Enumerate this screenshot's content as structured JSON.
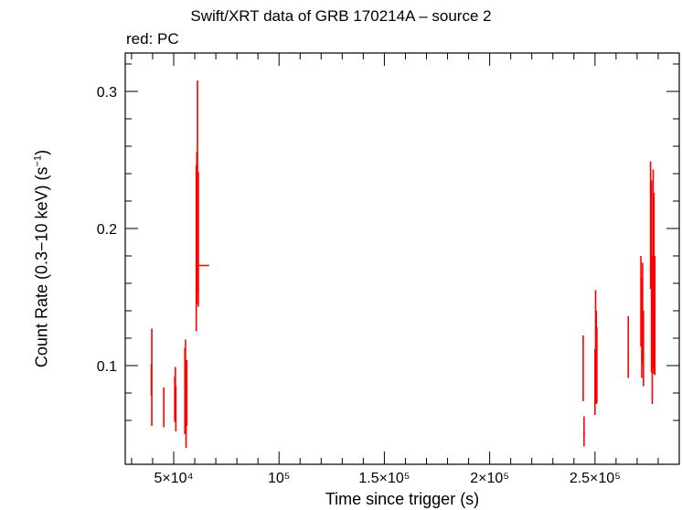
{
  "chart_data": {
    "type": "scatter",
    "title": "Swift/XRT data of GRB 170214A – source 2",
    "subtitle": "red: PC",
    "xlabel": "Time since trigger (s)",
    "ylabel": "Count Rate (0.3−10 keV) (s",
    "ylabel_sup": "−1",
    "ylabel_tail": ")",
    "xlim": [
      27000,
      290000
    ],
    "ylim": [
      0.028,
      0.328
    ],
    "x_ticks": [
      {
        "value": 50000,
        "label": "5×10⁴"
      },
      {
        "value": 100000,
        "label": "10⁵"
      },
      {
        "value": 150000,
        "label": "1.5×10⁵"
      },
      {
        "value": 200000,
        "label": "2×10⁵"
      },
      {
        "value": 250000,
        "label": "2.5×10⁵"
      }
    ],
    "y_ticks": [
      {
        "value": 0.1,
        "label": "0.1"
      },
      {
        "value": 0.2,
        "label": "0.2"
      },
      {
        "value": 0.3,
        "label": "0.3"
      }
    ],
    "series": [
      {
        "color": "#ff0000",
        "points": [
          {
            "x": 39400,
            "xerr": 150,
            "y": 0.095,
            "ylo": 0.078,
            "yhi": 0.101
          },
          {
            "x": 39600,
            "xerr": 150,
            "y": 0.087,
            "ylo": 0.056,
            "yhi": 0.127
          },
          {
            "x": 45300,
            "xerr": 150,
            "y": 0.07,
            "ylo": 0.055,
            "yhi": 0.084
          },
          {
            "x": 50500,
            "xerr": 150,
            "y": 0.075,
            "ylo": 0.059,
            "yhi": 0.092
          },
          {
            "x": 50800,
            "xerr": 150,
            "y": 0.084,
            "ylo": 0.068,
            "yhi": 0.099
          },
          {
            "x": 51000,
            "xerr": 150,
            "y": 0.068,
            "ylo": 0.052,
            "yhi": 0.085
          },
          {
            "x": 55300,
            "xerr": 150,
            "y": 0.078,
            "ylo": 0.05,
            "yhi": 0.113
          },
          {
            "x": 55600,
            "xerr": 150,
            "y": 0.084,
            "ylo": 0.061,
            "yhi": 0.119
          },
          {
            "x": 55900,
            "xerr": 150,
            "y": 0.069,
            "ylo": 0.04,
            "yhi": 0.097
          },
          {
            "x": 56200,
            "xerr": 150,
            "y": 0.075,
            "ylo": 0.056,
            "yhi": 0.104
          },
          {
            "x": 60700,
            "xerr": 150,
            "y": 0.185,
            "ylo": 0.125,
            "yhi": 0.246
          },
          {
            "x": 61000,
            "xerr": 150,
            "y": 0.203,
            "ylo": 0.145,
            "yhi": 0.256
          },
          {
            "x": 61300,
            "xerr": 150,
            "y": 0.23,
            "ylo": 0.153,
            "yhi": 0.308
          },
          {
            "x": 61700,
            "xerr": 150,
            "y": 0.184,
            "ylo": 0.143,
            "yhi": 0.241
          },
          {
            "x": 64300,
            "xerr": 2500,
            "y": 0.173,
            "ylo": 0.173,
            "yhi": 0.173
          },
          {
            "x": 244400,
            "xerr": 150,
            "y": 0.1,
            "ylo": 0.074,
            "yhi": 0.122
          },
          {
            "x": 244800,
            "xerr": 400,
            "y": 0.051,
            "ylo": 0.041,
            "yhi": 0.063
          },
          {
            "x": 250000,
            "xerr": 150,
            "y": 0.092,
            "ylo": 0.064,
            "yhi": 0.112
          },
          {
            "x": 250300,
            "xerr": 150,
            "y": 0.125,
            "ylo": 0.104,
            "yhi": 0.155
          },
          {
            "x": 250600,
            "xerr": 150,
            "y": 0.096,
            "ylo": 0.072,
            "yhi": 0.14
          },
          {
            "x": 250900,
            "xerr": 150,
            "y": 0.099,
            "ylo": 0.073,
            "yhi": 0.128
          },
          {
            "x": 265800,
            "xerr": 150,
            "y": 0.114,
            "ylo": 0.091,
            "yhi": 0.136
          },
          {
            "x": 271800,
            "xerr": 150,
            "y": 0.149,
            "ylo": 0.114,
            "yhi": 0.18
          },
          {
            "x": 272200,
            "xerr": 150,
            "y": 0.118,
            "ylo": 0.091,
            "yhi": 0.164
          },
          {
            "x": 272600,
            "xerr": 150,
            "y": 0.138,
            "ylo": 0.101,
            "yhi": 0.175
          },
          {
            "x": 273000,
            "xerr": 150,
            "y": 0.111,
            "ylo": 0.085,
            "yhi": 0.14
          },
          {
            "x": 276400,
            "xerr": 150,
            "y": 0.204,
            "ylo": 0.156,
            "yhi": 0.249
          },
          {
            "x": 276800,
            "xerr": 150,
            "y": 0.165,
            "ylo": 0.095,
            "yhi": 0.235
          },
          {
            "x": 277200,
            "xerr": 150,
            "y": 0.117,
            "ylo": 0.072,
            "yhi": 0.18
          },
          {
            "x": 277600,
            "xerr": 150,
            "y": 0.133,
            "ylo": 0.098,
            "yhi": 0.243
          },
          {
            "x": 278000,
            "xerr": 150,
            "y": 0.162,
            "ylo": 0.094,
            "yhi": 0.226
          },
          {
            "x": 278400,
            "xerr": 150,
            "y": 0.145,
            "ylo": 0.093,
            "yhi": 0.18
          }
        ]
      }
    ],
    "grid": false,
    "legend": "none"
  }
}
